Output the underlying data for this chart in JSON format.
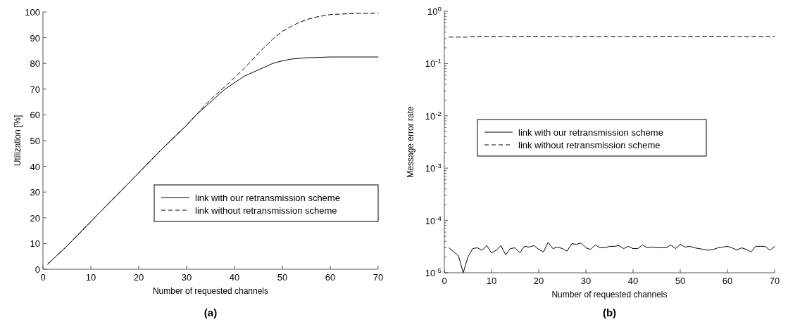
{
  "chart_data": [
    {
      "type": "line",
      "title": "(a)",
      "xlabel": "Number of requested channels",
      "ylabel": "Utilization [%]",
      "xlim": [
        0,
        70
      ],
      "xticks": [
        0,
        10,
        20,
        30,
        40,
        50,
        60,
        70
      ],
      "ylim": [
        0,
        100
      ],
      "yticks": [
        0,
        10,
        20,
        30,
        40,
        50,
        60,
        70,
        80,
        90,
        100
      ],
      "grid": false,
      "legend": "right",
      "marker": "none",
      "series": [
        {
          "name": "link with our retransmission scheme",
          "color": "#000000",
          "line_style": "solid",
          "x": [
            1,
            5,
            10,
            15,
            20,
            25,
            30,
            32,
            35,
            38,
            40,
            42,
            45,
            48,
            50,
            52,
            55,
            60,
            70
          ],
          "values": [
            2,
            9,
            18.5,
            28,
            37.5,
            47,
            56,
            60,
            65,
            70,
            72.5,
            75,
            77.5,
            80,
            81,
            81.7,
            82.2,
            82.5,
            82.5
          ]
        },
        {
          "name": "link without retransmission scheme",
          "color": "#000000",
          "line_style": "dashed",
          "x": [
            1,
            5,
            10,
            15,
            20,
            25,
            30,
            32,
            35,
            38,
            40,
            42,
            45,
            48,
            50,
            53,
            55,
            57,
            60,
            65,
            70
          ],
          "values": [
            2,
            9,
            18.5,
            28,
            37.5,
            47,
            56,
            60,
            66,
            71,
            74.5,
            78,
            84,
            89.5,
            92.5,
            95.5,
            97,
            98,
            99,
            99.4,
            99.5
          ]
        }
      ]
    },
    {
      "type": "line",
      "title": "(b)",
      "xlabel": "Number of requested channels",
      "ylabel": "Message error rate",
      "log": "y",
      "xlim": [
        0,
        70
      ],
      "xticks": [
        0,
        10,
        20,
        30,
        40,
        50,
        60,
        70
      ],
      "ylim": [
        1e-05,
        1
      ],
      "yticks": [
        {
          "value": 1e-05,
          "label": "10$^{-5}$"
        },
        {
          "value": 2e-05,
          "label": null
        },
        {
          "value": 3e-05,
          "label": null
        },
        {
          "value": 4e-05,
          "label": null
        },
        {
          "value": 5e-05,
          "label": null
        },
        {
          "value": 6e-05,
          "label": null
        },
        {
          "value": 7e-05,
          "label": null
        },
        {
          "value": 8e-05,
          "label": null
        },
        {
          "value": 9e-05,
          "label": null
        },
        {
          "value": 0.0001,
          "label": "10$^{-4}$"
        },
        {
          "value": 0.0002,
          "label": null
        },
        {
          "value": 0.0003,
          "label": null
        },
        {
          "value": 0.0004,
          "label": null
        },
        {
          "value": 0.0005,
          "label": null
        },
        {
          "value": 0.0006,
          "label": null
        },
        {
          "value": 0.0007,
          "label": null
        },
        {
          "value": 0.0008,
          "label": null
        },
        {
          "value": 0.0009,
          "label": null
        },
        {
          "value": 0.001,
          "label": "10$^{-3}$"
        },
        {
          "value": 0.002,
          "label": null
        },
        {
          "value": 0.003,
          "label": null
        },
        {
          "value": 0.004,
          "label": null
        },
        {
          "value": 0.005,
          "label": null
        },
        {
          "value": 0.006,
          "label": null
        },
        {
          "value": 0.007,
          "label": null
        },
        {
          "value": 0.008,
          "label": null
        },
        {
          "value": 0.009,
          "label": null
        },
        {
          "value": 0.01,
          "label": "10$^{-2}$"
        },
        {
          "value": 0.02,
          "label": null
        },
        {
          "value": 0.03,
          "label": null
        },
        {
          "value": 0.04,
          "label": null
        },
        {
          "value": 0.05,
          "label": null
        },
        {
          "value": 0.06,
          "label": null
        },
        {
          "value": 0.07,
          "label": null
        },
        {
          "value": 0.08,
          "label": null
        },
        {
          "value": 0.09,
          "label": null
        },
        {
          "value": 0.1,
          "label": "10$^{-1}$"
        },
        {
          "value": 0.2,
          "label": null
        },
        {
          "value": 0.3,
          "label": null
        },
        {
          "value": 0.4,
          "label": null
        },
        {
          "value": 0.5,
          "label": null
        },
        {
          "value": 0.6,
          "label": null
        },
        {
          "value": 0.7,
          "label": null
        },
        {
          "value": 0.8,
          "label": null
        },
        {
          "value": 0.9,
          "label": null
        },
        {
          "value": 1,
          "label": "10$^{0}$"
        }
      ],
      "grid": false,
      "legend": "center",
      "marker": "none",
      "series": [
        {
          "name": "link with our retransmission scheme",
          "color": "#000000",
          "line_style": "solid",
          "x": [
            1,
            2,
            3,
            4,
            5,
            6,
            7,
            8,
            9,
            10,
            11,
            12,
            13,
            14,
            15,
            16,
            17,
            18,
            19,
            20,
            21,
            22,
            23,
            24,
            25,
            26,
            27,
            28,
            29,
            30,
            31,
            32,
            33,
            34,
            35,
            36,
            37,
            38,
            39,
            40,
            41,
            42,
            43,
            44,
            45,
            46,
            47,
            48,
            49,
            50,
            51,
            52,
            53,
            54,
            55,
            56,
            57,
            58,
            59,
            60,
            61,
            62,
            63,
            64,
            65,
            66,
            67,
            68,
            69,
            70
          ],
          "values": [
            3e-05,
            2.5e-05,
            2.1e-05,
            1e-05,
            2e-05,
            2.9e-05,
            3e-05,
            2.7e-05,
            3.3e-05,
            2.4e-05,
            2.7e-05,
            3.3e-05,
            2.2e-05,
            2.9e-05,
            3e-05,
            2.4e-05,
            3.2e-05,
            3.1e-05,
            3.3e-05,
            2.8e-05,
            2.5e-05,
            3.8e-05,
            2.9e-05,
            3.1e-05,
            2.9e-05,
            2.6e-05,
            3.6e-05,
            3.5e-05,
            3.7e-05,
            3e-05,
            2.8e-05,
            3.4e-05,
            3e-05,
            3e-05,
            3.2e-05,
            3.2e-05,
            3.3e-05,
            2.9e-05,
            3.2e-05,
            2.9e-05,
            2.9e-05,
            3.4e-05,
            3e-05,
            3.1e-05,
            3e-05,
            3e-05,
            3e-05,
            3.4e-05,
            2.9e-05,
            3.5e-05,
            3.1e-05,
            3.2e-05,
            3e-05,
            2.9e-05,
            2.8e-05,
            2.7e-05,
            2.8e-05,
            3e-05,
            3.1e-05,
            3.2e-05,
            3e-05,
            2.7e-05,
            3e-05,
            2.8e-05,
            2.5e-05,
            3.2e-05,
            3.2e-05,
            3.2e-05,
            2.7e-05,
            3.2e-05
          ]
        },
        {
          "name": "link without retransmission scheme",
          "color": "#000000",
          "line_style": "dashed",
          "x": [
            1,
            5,
            6,
            10,
            20,
            26,
            27,
            30,
            40,
            50,
            60,
            70
          ],
          "values": [
            0.32,
            0.32,
            0.33,
            0.33,
            0.33,
            0.33,
            0.33,
            0.33,
            0.33,
            0.33,
            0.33,
            0.33
          ]
        }
      ]
    }
  ]
}
